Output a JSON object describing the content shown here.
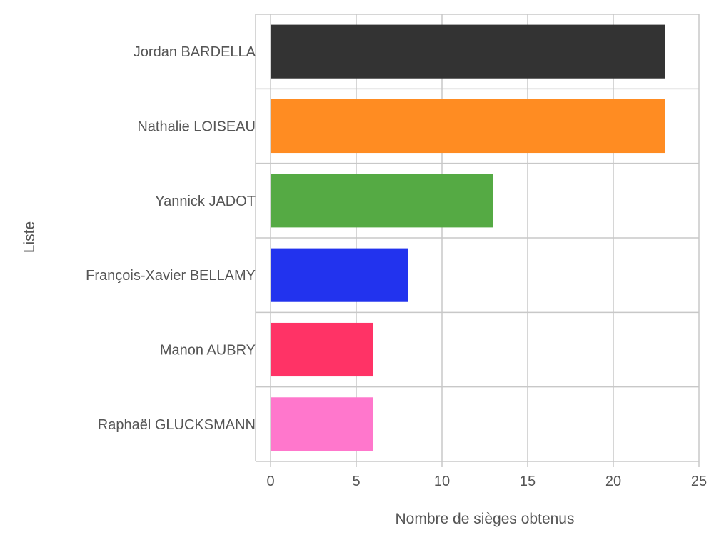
{
  "chart_data": {
    "type": "bar",
    "orientation": "horizontal",
    "categories": [
      "Jordan BARDELLA",
      "Nathalie LOISEAU",
      "Yannick JADOT",
      "François-Xavier BELLAMY",
      "Manon AUBRY",
      "Raphaël GLUCKSMANN"
    ],
    "values": [
      23,
      23,
      13,
      8,
      6,
      6
    ],
    "colors": [
      "#333333",
      "#ff8c22",
      "#55aa44",
      "#2233ee",
      "#ff3366",
      "#ff77cc"
    ],
    "xlabel": "Nombre de sièges obtenus",
    "ylabel": "Liste",
    "xlim": [
      0,
      25
    ],
    "xticks": [
      0,
      5,
      10,
      15,
      20,
      25
    ],
    "grid": true
  }
}
